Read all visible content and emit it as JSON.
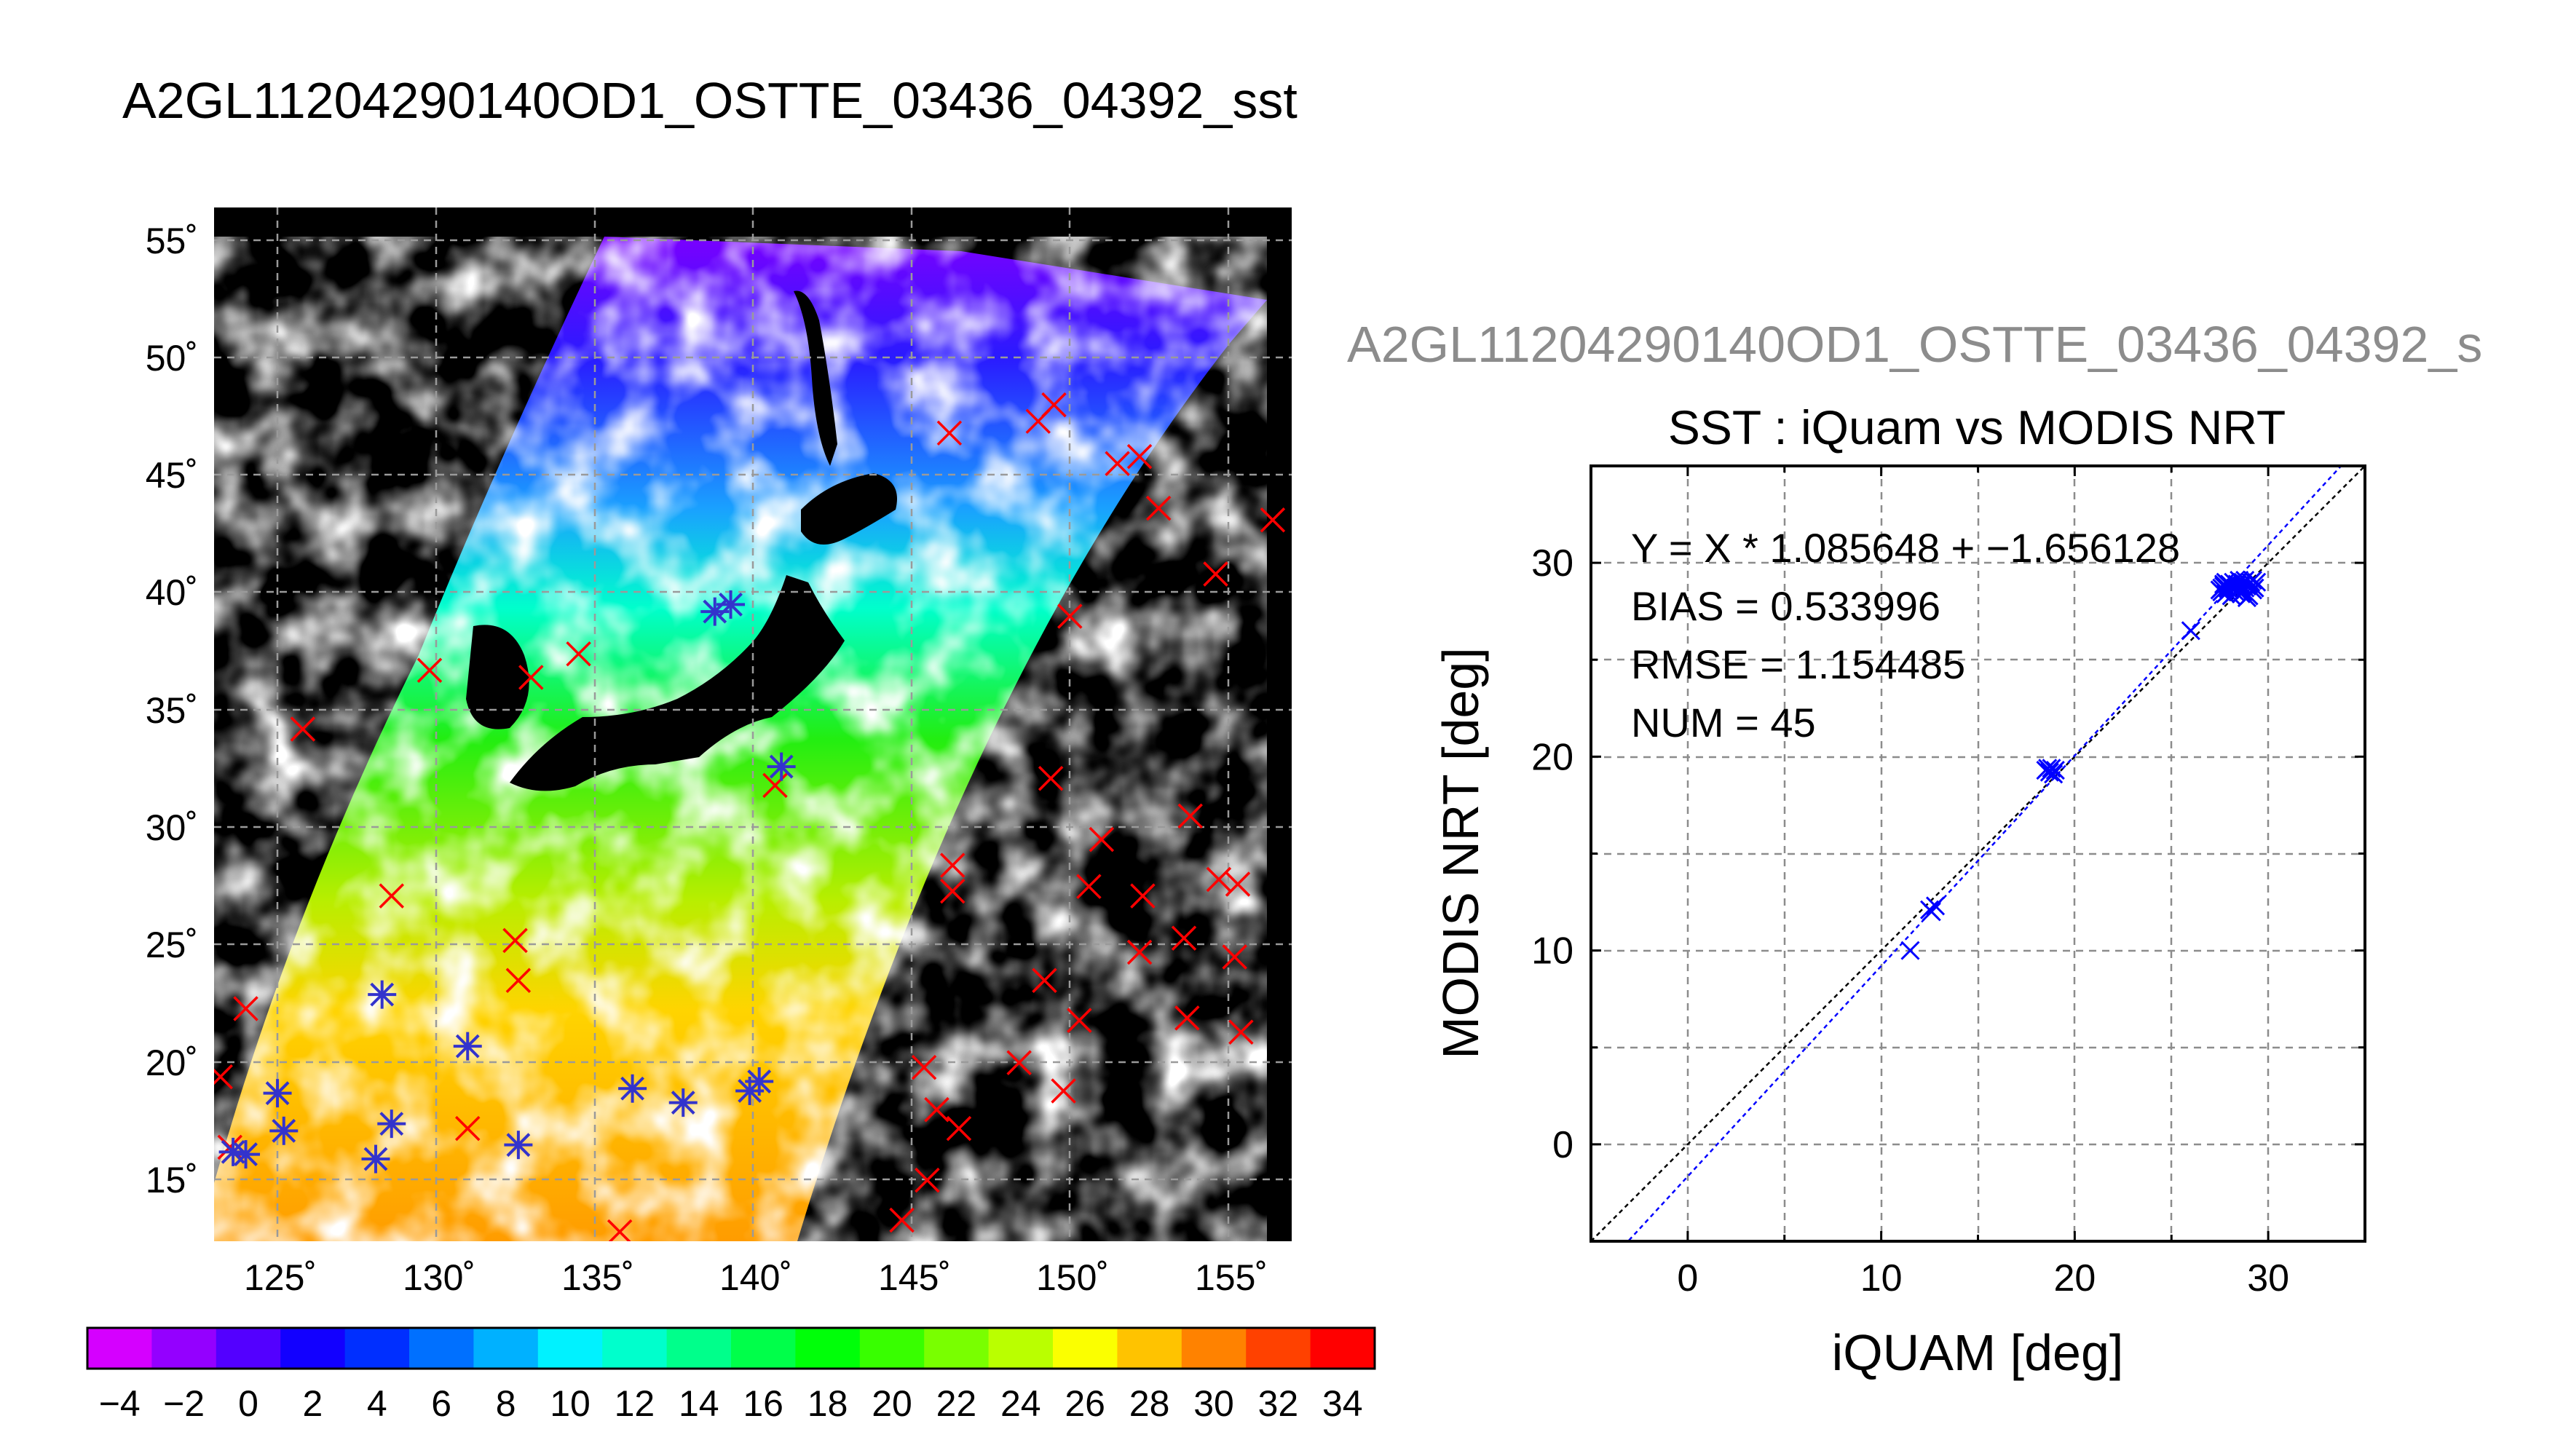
{
  "page": {
    "main_title": "A2GL11204290140OD1_OSTTE_03436_04392_sst",
    "scatter_header": "A2GL11204290140OD1_OSTTE_03436_04392_s"
  },
  "colors": {
    "land": "#000000",
    "cloud": "#ffffff",
    "gridline": "#9a9a9a",
    "insitu_marker": "#ff0000",
    "matchup_marker": "#3333cc",
    "fit_line": "#0000ff",
    "identity_line": "#000000",
    "header_gray": "#8c8c8c"
  },
  "chart_data": [
    {
      "type": "map",
      "map_labels": {
        "lat_ticks": [
          "15˚",
          "20˚",
          "25˚",
          "30˚",
          "35˚",
          "40˚",
          "45˚",
          "50˚",
          "55˚"
        ],
        "lon_ticks": [
          "125˚",
          "130˚",
          "135˚",
          "140˚",
          "145˚",
          "150˚",
          "155˚"
        ]
      },
      "lat_values": [
        15,
        20,
        25,
        30,
        35,
        40,
        45,
        50,
        55
      ],
      "lon_values": [
        125,
        130,
        135,
        140,
        145,
        150,
        155
      ],
      "xlim": [
        123,
        157
      ],
      "ylim": [
        12.5,
        56.5
      ],
      "grid": true,
      "colorbar": {
        "min": -5,
        "max": 35,
        "step": 2,
        "tick_labels": [
          "−4",
          "−2",
          "0",
          "2",
          "4",
          "6",
          "8",
          "10",
          "12",
          "14",
          "16",
          "18",
          "20",
          "22",
          "24",
          "26",
          "28",
          "30",
          "32",
          "34"
        ]
      },
      "insitu_points": [
        [
          123.5,
          16.5
        ],
        [
          124,
          22.4
        ],
        [
          123.2,
          19.5
        ],
        [
          125.8,
          34.3
        ],
        [
          129.8,
          36.8
        ],
        [
          128.6,
          27.2
        ],
        [
          132.5,
          25.3
        ],
        [
          132.6,
          23.6
        ],
        [
          133,
          36.5
        ],
        [
          134.5,
          37.5
        ],
        [
          131,
          17.3
        ],
        [
          135.8,
          12.9
        ],
        [
          140.7,
          31.9
        ],
        [
          145.4,
          19.9
        ],
        [
          145.8,
          18.1
        ],
        [
          146.5,
          17.3
        ],
        [
          145.5,
          15.1
        ],
        [
          144.7,
          13.4
        ],
        [
          146.3,
          28.5
        ],
        [
          146.3,
          27.4
        ],
        [
          148.4,
          20.1
        ],
        [
          149.2,
          23.6
        ],
        [
          149.4,
          32.2
        ],
        [
          150.3,
          21.9
        ],
        [
          149.8,
          18.9
        ],
        [
          150.6,
          27.6
        ],
        [
          151,
          29.6
        ],
        [
          152.3,
          27.2
        ],
        [
          152.2,
          24.8
        ],
        [
          153.6,
          25.4
        ],
        [
          153.7,
          22.0
        ],
        [
          153.8,
          30.6
        ],
        [
          154.7,
          27.9
        ],
        [
          155.3,
          27.7
        ],
        [
          155.2,
          24.6
        ],
        [
          155.4,
          21.4
        ],
        [
          154.6,
          40.9
        ],
        [
          152.8,
          43.7
        ],
        [
          156.4,
          43.2
        ],
        [
          151.5,
          45.6
        ],
        [
          152.2,
          45.9
        ],
        [
          149,
          47.4
        ],
        [
          149.5,
          48.1
        ],
        [
          150,
          39.1
        ],
        [
          146.2,
          46.9
        ]
      ],
      "matchup_points": [
        [
          123.6,
          16.3
        ],
        [
          124,
          16.2
        ],
        [
          125,
          18.8
        ],
        [
          125.2,
          17.2
        ],
        [
          128.1,
          16
        ],
        [
          128.6,
          17.5
        ],
        [
          128.3,
          23
        ],
        [
          131,
          20.8
        ],
        [
          132.6,
          16.6
        ],
        [
          136.2,
          19.0
        ],
        [
          137.8,
          18.4
        ],
        [
          139.9,
          18.9
        ],
        [
          140.2,
          19.3
        ],
        [
          140.9,
          32.7
        ],
        [
          138.8,
          39.3
        ],
        [
          139.3,
          39.6
        ]
      ]
    },
    {
      "type": "scatter",
      "title": "SST : iQuam vs MODIS NRT",
      "xlabel": "iQUAM [deg]",
      "ylabel": "MODIS NRT [deg]",
      "xlim": [
        -5,
        35
      ],
      "ylim": [
        -5,
        35
      ],
      "x_ticks": [
        0,
        10,
        20,
        30
      ],
      "y_ticks": [
        0,
        10,
        20,
        30
      ],
      "grid": true,
      "stats": {
        "equation": "Y = X * 1.085648 + −1.656128",
        "bias": "BIAS = 0.533996",
        "rmse": "RMSE = 1.154485",
        "num": "NUM = 45"
      },
      "fit": {
        "slope": 1.085648,
        "intercept": -1.656128
      },
      "points": [
        [
          11.5,
          10.0
        ],
        [
          12.5,
          12.1
        ],
        [
          12.8,
          12.3
        ],
        [
          12.6,
          12.0
        ],
        [
          18.5,
          19.3
        ],
        [
          18.8,
          19.4
        ],
        [
          18.9,
          19.1
        ],
        [
          18.7,
          19.2
        ],
        [
          19.0,
          19.3
        ],
        [
          18.6,
          19.4
        ],
        [
          26.0,
          26.5
        ],
        [
          27.6,
          28.7
        ],
        [
          27.7,
          28.8
        ],
        [
          27.8,
          28.4
        ],
        [
          27.9,
          28.9
        ],
        [
          28.0,
          28.6
        ],
        [
          28.1,
          28.8
        ],
        [
          27.6,
          28.5
        ],
        [
          27.7,
          28.9
        ],
        [
          27.9,
          28.7
        ],
        [
          28.0,
          28.9
        ],
        [
          28.2,
          29.0
        ],
        [
          28.3,
          28.7
        ],
        [
          28.4,
          28.9
        ],
        [
          28.5,
          28.6
        ],
        [
          28.6,
          28.8
        ],
        [
          28.7,
          29.0
        ],
        [
          28.8,
          28.7
        ],
        [
          28.9,
          28.8
        ],
        [
          29.0,
          28.9
        ],
        [
          29.1,
          29.0
        ],
        [
          28.3,
          28.5
        ],
        [
          28.5,
          29.1
        ],
        [
          28.7,
          28.5
        ],
        [
          28.9,
          28.2
        ],
        [
          28.1,
          28.3
        ],
        [
          29.2,
          28.6
        ],
        [
          29.3,
          28.7
        ],
        [
          29.4,
          29.0
        ],
        [
          27.5,
          28.6
        ],
        [
          27.8,
          29.0
        ],
        [
          28.6,
          28.4
        ],
        [
          28.8,
          29.1
        ],
        [
          29.0,
          28.3
        ],
        [
          29.2,
          29.1
        ]
      ]
    }
  ]
}
